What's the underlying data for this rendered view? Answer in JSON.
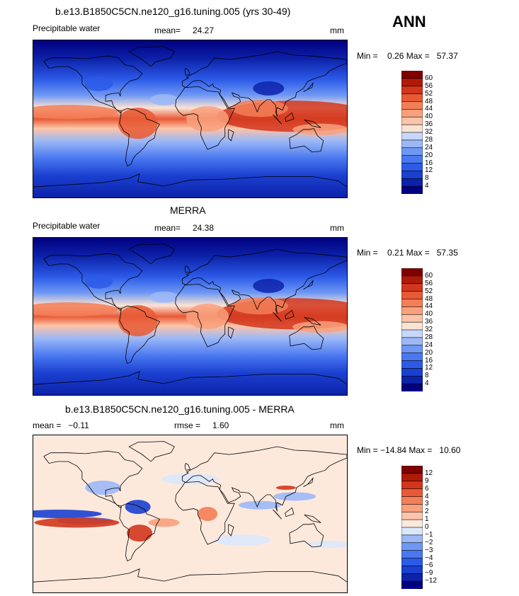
{
  "season": "ANN",
  "panels": [
    {
      "title": "b.e13.B1850C5CN.ne120_g16.tuning.005 (yrs 30-49)",
      "variable": "Precipitable water",
      "mean_label": "mean=",
      "mean_value": "24.27",
      "units": "mm",
      "minmax": "Min =    0.26 Max =   57.37",
      "kind": "field",
      "colorbar_labels": [
        "60",
        "56",
        "52",
        "48",
        "44",
        "40",
        "36",
        "32",
        "28",
        "24",
        "20",
        "16",
        "12",
        "8",
        "4"
      ]
    },
    {
      "title": "MERRA",
      "variable": "Precipitable water",
      "mean_label": "mean=",
      "mean_value": "24.38",
      "units": "mm",
      "minmax": "Min =    0.21 Max =   57.35",
      "kind": "field",
      "colorbar_labels": [
        "60",
        "56",
        "52",
        "48",
        "44",
        "40",
        "36",
        "32",
        "28",
        "24",
        "20",
        "16",
        "12",
        "8",
        "4"
      ]
    },
    {
      "title": "b.e13.B1850C5CN.ne120_g16.tuning.005 - MERRA",
      "variable": "mean =   −0.11",
      "mean_label": "rmse =",
      "mean_value": "1.60",
      "units": "mm",
      "minmax": "Min = −14.84 Max =   10.60",
      "kind": "diff",
      "colorbar_labels": [
        "12",
        "9",
        "6",
        "4",
        "3",
        "2",
        "1",
        "0",
        "−1",
        "−2",
        "−3",
        "−4",
        "−6",
        "−9",
        "−12"
      ]
    }
  ],
  "colors": {
    "field_scale": [
      "#000080",
      "#0d22aa",
      "#1a40d0",
      "#2c5be8",
      "#4a78f0",
      "#6f98f4",
      "#9cb8f7",
      "#c7d8fa",
      "#fbe3d4",
      "#fcc4a8",
      "#f9a07c",
      "#f37e57",
      "#e85a36",
      "#d2361c",
      "#b01a08",
      "#800000"
    ],
    "diff_scale": [
      "#000080",
      "#0d22aa",
      "#1a40d0",
      "#2c5be8",
      "#4a78f0",
      "#6f98f4",
      "#9cb8f7",
      "#dbe8fc",
      "#fde9dc",
      "#fcc4a8",
      "#f9a07c",
      "#f37e57",
      "#e85a36",
      "#d2361c",
      "#b01a08",
      "#800000"
    ]
  }
}
